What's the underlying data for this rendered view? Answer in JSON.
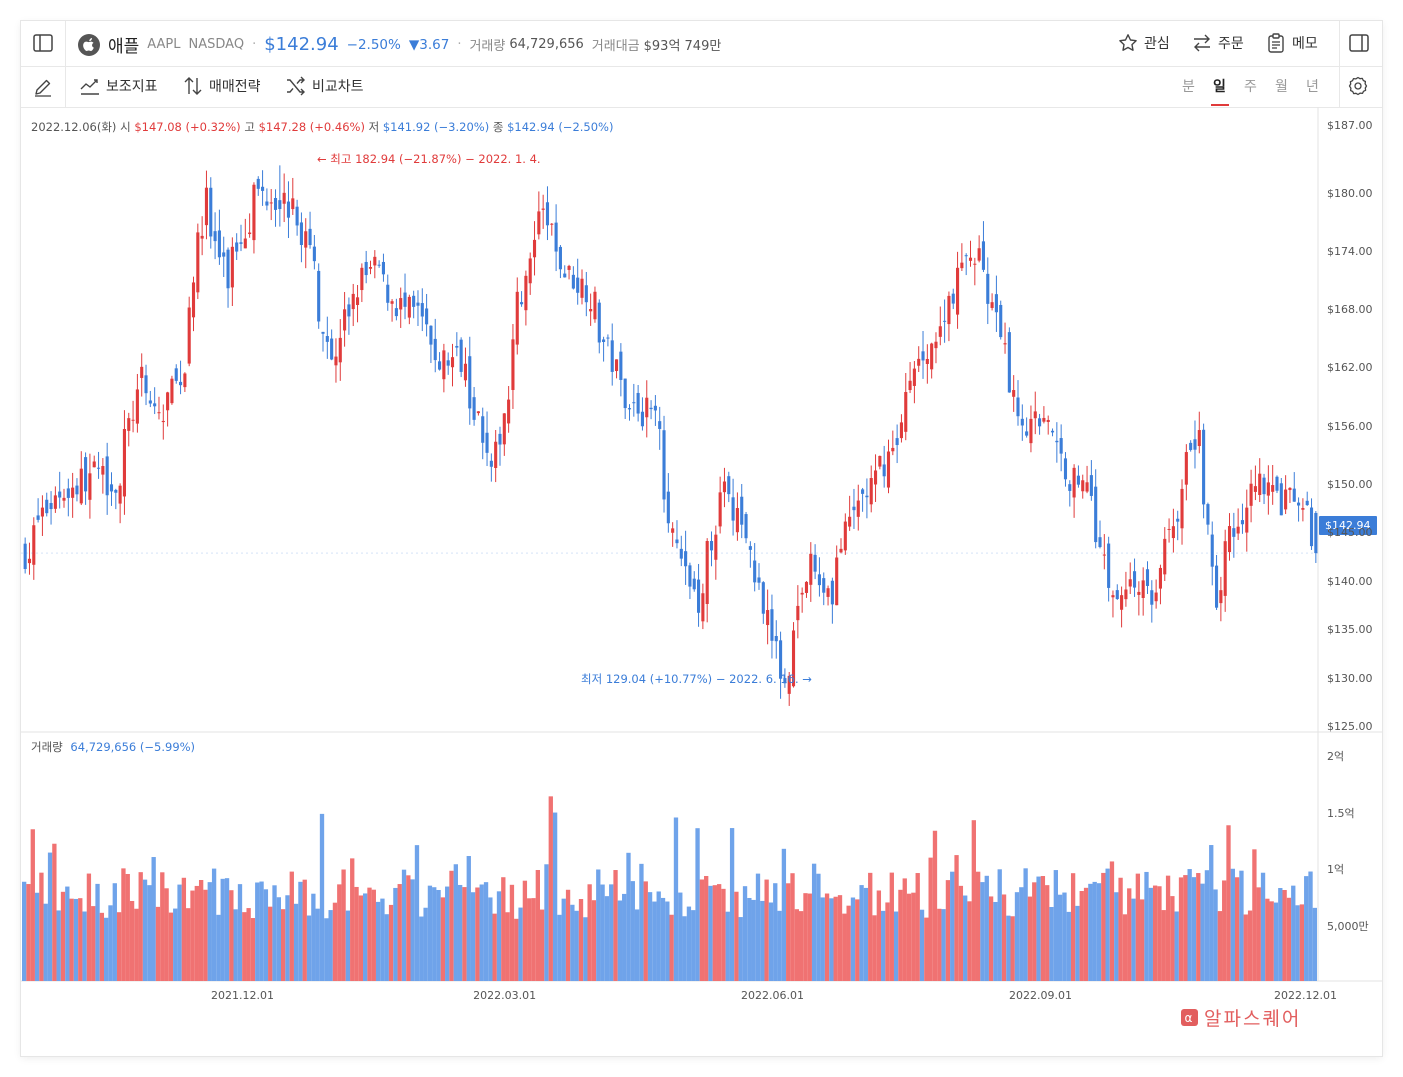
{
  "header": {
    "name": "애플",
    "ticker": "AAPL",
    "exchange": "NASDAQ",
    "dot": "·",
    "price": "$142.94",
    "change_pct": "−2.50%",
    "change_abs": "▼3.67",
    "volume_label": "거래량",
    "volume_value": "64,729,656",
    "amount_label": "거래대금",
    "amount_value": "$93억 749만",
    "actions": {
      "watch": "관심",
      "order": "주문",
      "memo": "메모"
    }
  },
  "toolbar": {
    "indicators": "보조지표",
    "strategy": "매매전략",
    "compare": "비교차트",
    "timeframes": [
      "분",
      "일",
      "주",
      "월",
      "년"
    ],
    "active_timeframe": "일"
  },
  "ohlc": {
    "date": "2022.12.06(화)",
    "open_label": "시",
    "open": "$147.08 (+0.32%)",
    "high_label": "고",
    "high": "$147.28 (+0.46%)",
    "low_label": "저",
    "low": "$141.92 (−3.20%)",
    "close_label": "종",
    "close": "$142.94 (−2.50%)"
  },
  "annotations": {
    "high": "← 최고 182.94 (−21.87%) − 2022. 1. 4.",
    "low": "최저 129.04 (+10.77%) − 2022. 6. 16. →"
  },
  "volume_info": {
    "label": "거래량",
    "value": "64,729,656 (−5.99%)"
  },
  "current_price_tag": "$142.94",
  "watermark": {
    "icon": "α",
    "text": "알파스퀘어"
  },
  "colors": {
    "up": "#e03b3b",
    "down": "#3b7dd8",
    "vol_up": "#f07272",
    "vol_down": "#6fa3ea"
  },
  "chart_data": {
    "type": "candlestick",
    "price_axis": {
      "ticks": [
        "$187.00",
        "$180.00",
        "$174.00",
        "$168.00",
        "$162.00",
        "$156.00",
        "$150.00",
        "$145.00",
        "$140.00",
        "$135.00",
        "$130.00",
        "$125.00"
      ],
      "range": [
        125,
        187
      ]
    },
    "volume_axis": {
      "ticks": [
        "2억",
        "1.5억",
        "1억",
        "5,000만"
      ],
      "range": [
        0,
        200000000
      ]
    },
    "x_axis_ticks": [
      "2021.12.01",
      "2022.03.01",
      "2022.06.01",
      "2022.09.01",
      "2022.12.01"
    ],
    "close_path": [
      [
        "2021-10-15",
        144.8
      ],
      [
        "2021-10-22",
        148.7
      ],
      [
        "2021-10-29",
        149.8
      ],
      [
        "2021-11-05",
        151.3
      ],
      [
        "2021-11-12",
        149.9
      ],
      [
        "2021-11-19",
        160.6
      ],
      [
        "2021-11-26",
        156.8
      ],
      [
        "2021-12-03",
        161.8
      ],
      [
        "2021-12-10",
        179.5
      ],
      [
        "2021-12-17",
        171.1
      ],
      [
        "2021-12-27",
        180.3
      ],
      [
        "2022-01-04",
        179.7
      ],
      [
        "2022-01-12",
        175.5
      ],
      [
        "2022-01-21",
        162.4
      ],
      [
        "2022-01-28",
        170.3
      ],
      [
        "2022-02-04",
        172.4
      ],
      [
        "2022-02-10",
        168.6
      ],
      [
        "2022-02-18",
        167.3
      ],
      [
        "2022-02-24",
        162.7
      ],
      [
        "2022-03-04",
        163.2
      ],
      [
        "2022-03-14",
        150.6
      ],
      [
        "2022-03-22",
        168.8
      ],
      [
        "2022-03-30",
        177.8
      ],
      [
        "2022-04-06",
        171.8
      ],
      [
        "2022-04-13",
        170.4
      ],
      [
        "2022-04-22",
        161.8
      ],
      [
        "2022-04-29",
        157.7
      ],
      [
        "2022-05-06",
        157.3
      ],
      [
        "2022-05-12",
        142.6
      ],
      [
        "2022-05-20",
        137.6
      ],
      [
        "2022-05-27",
        149.6
      ],
      [
        "2022-06-03",
        145.4
      ],
      [
        "2022-06-10",
        137.1
      ],
      [
        "2022-06-16",
        130.1
      ],
      [
        "2022-06-24",
        141.7
      ],
      [
        "2022-07-01",
        138.9
      ],
      [
        "2022-07-08",
        147.0
      ],
      [
        "2022-07-15",
        150.2
      ],
      [
        "2022-07-22",
        154.1
      ],
      [
        "2022-07-29",
        162.5
      ],
      [
        "2022-08-05",
        165.4
      ],
      [
        "2022-08-12",
        172.1
      ],
      [
        "2022-08-18",
        174.2
      ],
      [
        "2022-08-26",
        163.6
      ],
      [
        "2022-09-02",
        155.8
      ],
      [
        "2022-09-09",
        157.4
      ],
      [
        "2022-09-16",
        150.7
      ],
      [
        "2022-09-23",
        150.4
      ],
      [
        "2022-09-30",
        138.2
      ],
      [
        "2022-10-07",
        140.1
      ],
      [
        "2022-10-14",
        138.4
      ],
      [
        "2022-10-21",
        147.3
      ],
      [
        "2022-10-28",
        155.7
      ],
      [
        "2022-11-03",
        138.9
      ],
      [
        "2022-11-10",
        146.9
      ],
      [
        "2022-11-17",
        150.7
      ],
      [
        "2022-11-25",
        148.1
      ],
      [
        "2022-12-01",
        148.3
      ],
      [
        "2022-12-06",
        142.9
      ]
    ],
    "high": {
      "value": 182.94,
      "date": "2022-01-04"
    },
    "low": {
      "value": 129.04,
      "date": "2022-06-16"
    },
    "last": {
      "open": 147.08,
      "high": 147.28,
      "low": 141.92,
      "close": 142.94,
      "volume": 64729656
    }
  }
}
